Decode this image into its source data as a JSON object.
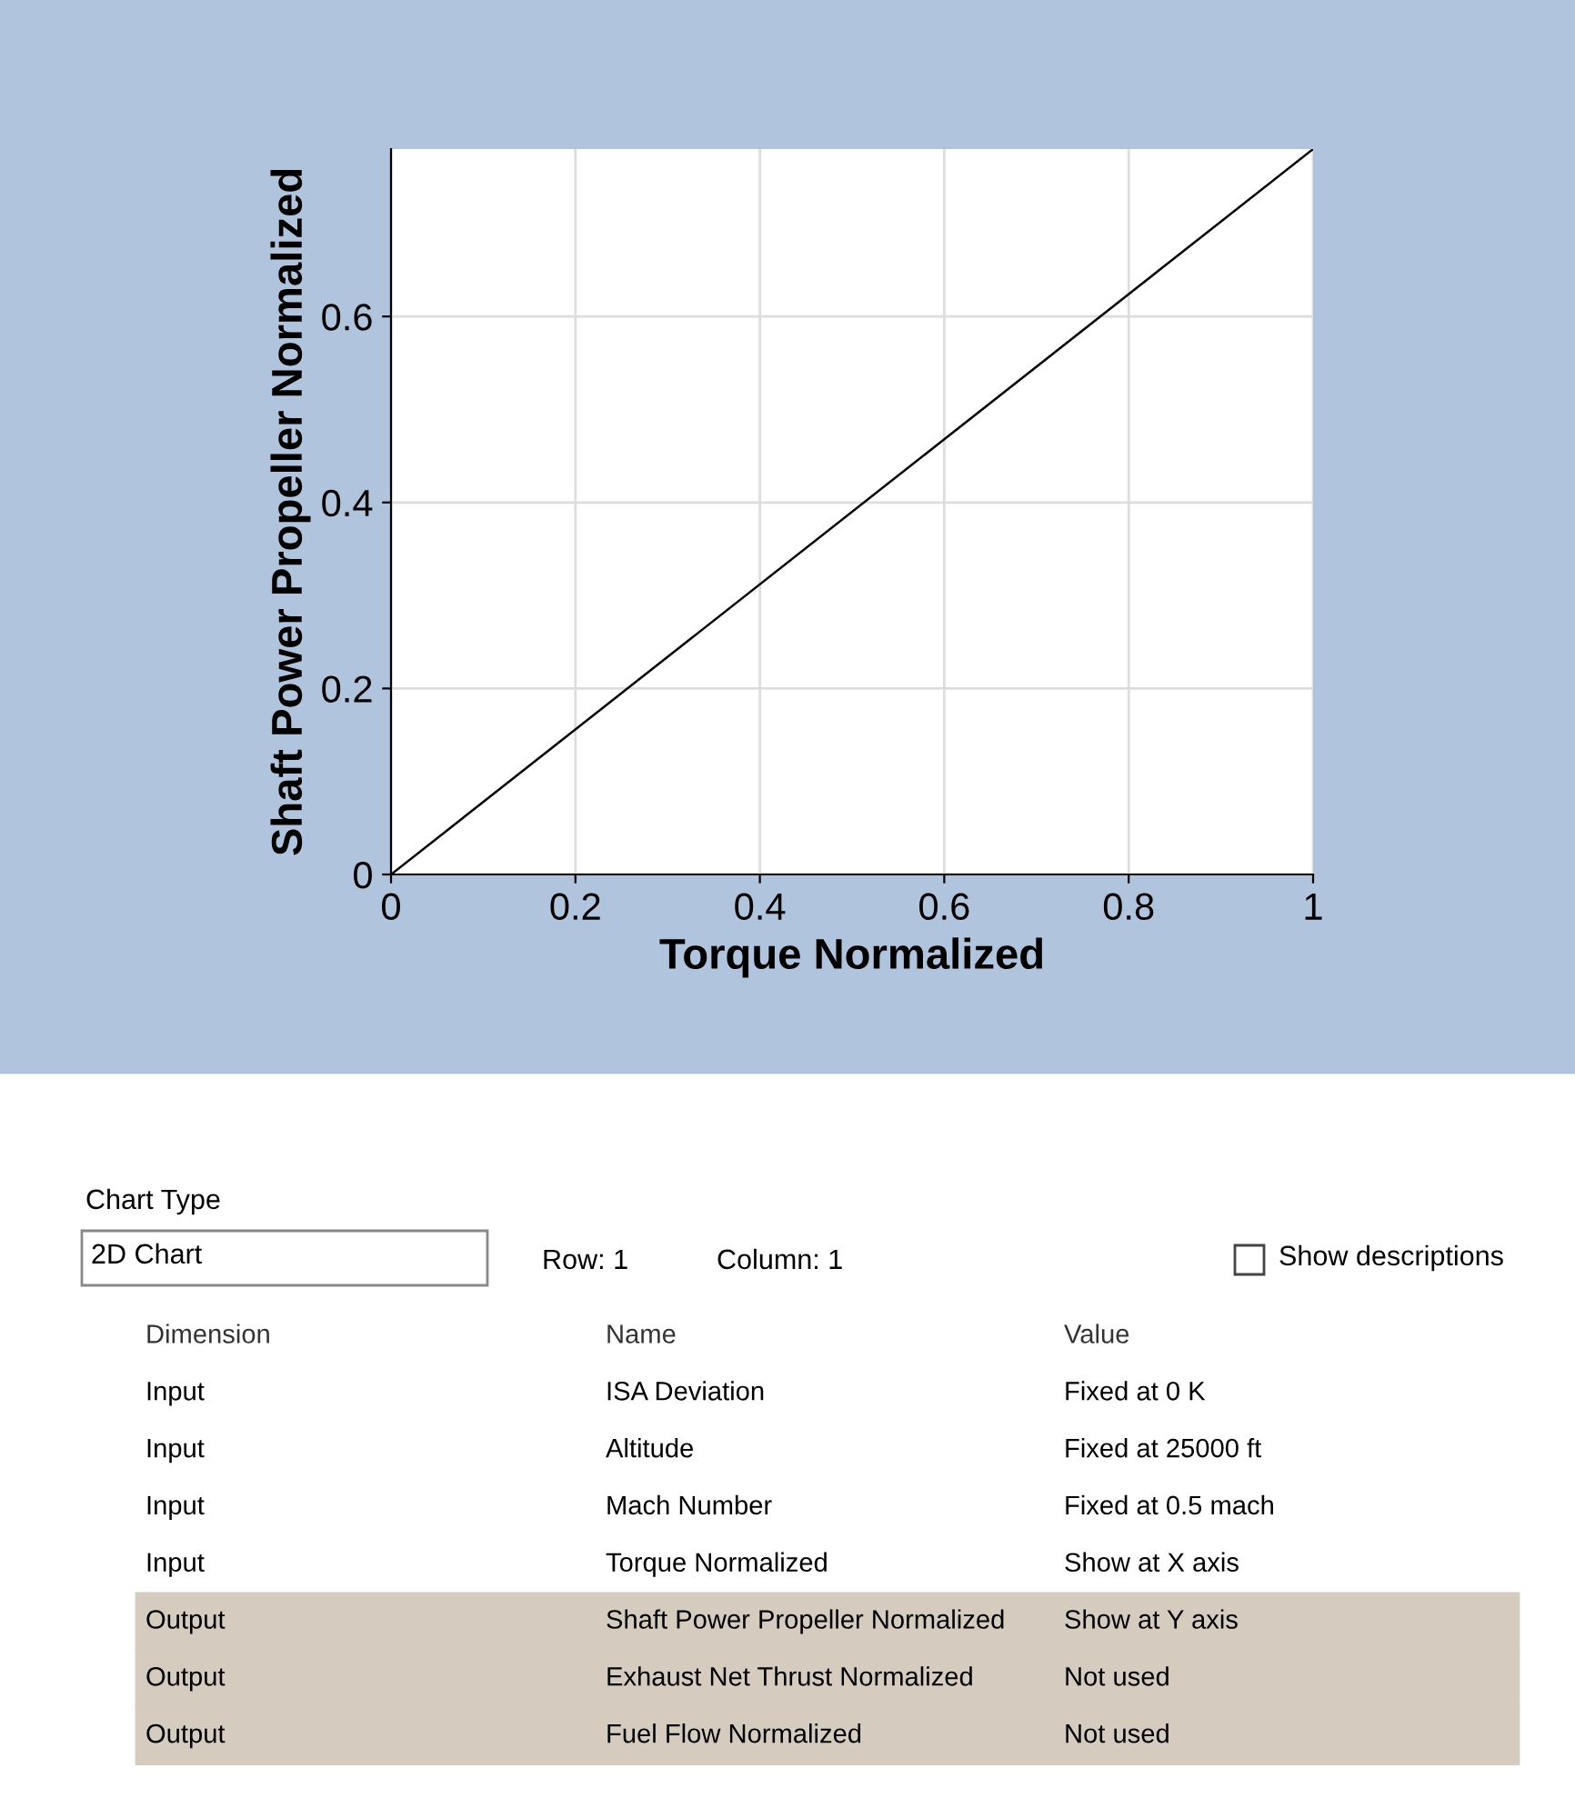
{
  "chart_data": [
    {
      "type": "line",
      "xlabel": "Torque Normalized",
      "ylabel": "Shaft Power Propeller Normalized",
      "x": [
        0,
        1
      ],
      "series": [
        {
          "color": "#000000",
          "values": [
            0,
            0.78
          ]
        }
      ],
      "xlim": [
        0,
        1
      ],
      "ylim": [
        0,
        0.78
      ],
      "xticks": [
        0,
        0.2,
        0.4,
        0.6,
        0.8,
        1
      ],
      "yticks": [
        0,
        0.2,
        0.4,
        0.6
      ],
      "grid": true,
      "marker": "none",
      "line_style": "solid"
    },
    {
      "type": "other",
      "annotations": [
        "Chart Type",
        "2D Chart",
        "Row: 1",
        "Column: 1",
        "Show descriptions",
        "Dimension",
        "Name",
        "Value",
        "Input",
        "ISA Deviation",
        "Fixed at 0 K",
        "Input",
        "Altitude",
        "Fixed at 25000 ft",
        "Input",
        "Mach Number",
        "Fixed at 0.5 mach",
        "Input",
        "Torque Normalized",
        "Show at X axis",
        "Output",
        "Shaft Power Propeller Normalized",
        "Show at Y axis",
        "Output",
        "Exhaust Net Thrust Normalized",
        "Not used",
        "Output",
        "Fuel Flow Normalized",
        "Not used"
      ]
    }
  ]
}
